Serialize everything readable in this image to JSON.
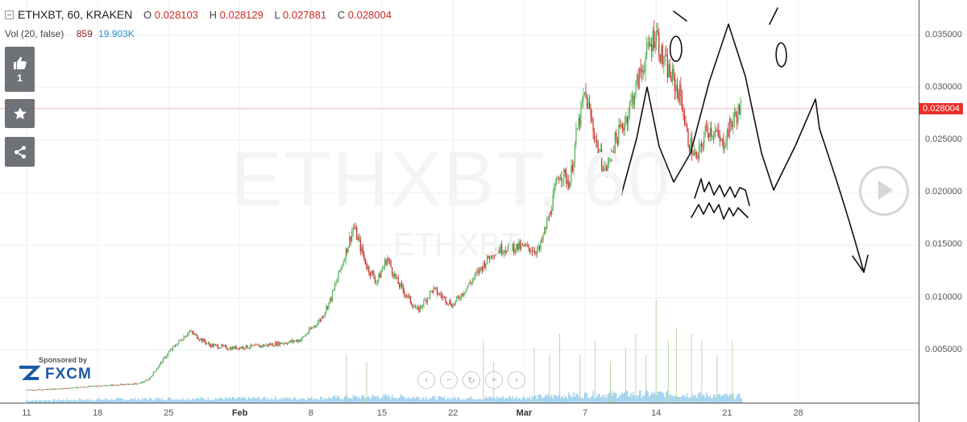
{
  "header": {
    "symbol": "ETHXBT, 60, KRAKEN",
    "open_label": "O",
    "open": "0.028103",
    "high_label": "H",
    "high": "0.028129",
    "low_label": "L",
    "low": "0.027881",
    "close_label": "C",
    "close": "0.028004"
  },
  "volume": {
    "label": "Vol (20, false)",
    "value1": "859",
    "value2": "19.903K"
  },
  "sidebar": {
    "like_count": "1"
  },
  "watermark": {
    "main": "ETHXBT, 60",
    "sub": "ETHXBT"
  },
  "sponsor": {
    "by": "Sponsored by",
    "logo": "FXCM"
  },
  "colors": {
    "up": "#4caf50",
    "down": "#c62828",
    "price_line": "#e8302a",
    "volume": "#7fc3ea",
    "accent_text": "#cc2b22"
  },
  "chart_data": {
    "type": "candlestick",
    "symbol": "ETHXBT",
    "interval": "60",
    "exchange": "KRAKEN",
    "last_price": 0.028004,
    "last_price_label": "0.028004",
    "ylim": [
      0.0,
      0.0385
    ],
    "y_ticks": [
      {
        "value": 0.005,
        "label": "0.005000"
      },
      {
        "value": 0.01,
        "label": "0.010000"
      },
      {
        "value": 0.015,
        "label": "0.015000"
      },
      {
        "value": 0.02,
        "label": "0.020000"
      },
      {
        "value": 0.025,
        "label": "0.025000"
      },
      {
        "value": 0.03,
        "label": "0.030000"
      },
      {
        "value": 0.035,
        "label": "0.035000"
      }
    ],
    "x_ticks": [
      {
        "label": "11",
        "bold": false,
        "day": 0
      },
      {
        "label": "18",
        "bold": false,
        "day": 7
      },
      {
        "label": "25",
        "bold": false,
        "day": 14
      },
      {
        "label": "Feb",
        "bold": true,
        "day": 21
      },
      {
        "label": "8",
        "bold": false,
        "day": 28
      },
      {
        "label": "15",
        "bold": false,
        "day": 35
      },
      {
        "label": "22",
        "bold": false,
        "day": 42
      },
      {
        "label": "Mar",
        "bold": true,
        "day": 49
      },
      {
        "label": "7",
        "bold": false,
        "day": 55
      },
      {
        "label": "14",
        "bold": false,
        "day": 62
      },
      {
        "label": "21",
        "bold": false,
        "day": 69
      },
      {
        "label": "28",
        "bold": false,
        "day": 76
      }
    ],
    "price_path": [
      [
        0,
        0.0012
      ],
      [
        3,
        0.0013
      ],
      [
        7,
        0.0016
      ],
      [
        9,
        0.0017
      ],
      [
        11,
        0.0018
      ],
      [
        12,
        0.0022
      ],
      [
        14,
        0.0048
      ],
      [
        16,
        0.0068
      ],
      [
        18,
        0.0055
      ],
      [
        20,
        0.0052
      ],
      [
        23,
        0.0054
      ],
      [
        26,
        0.0058
      ],
      [
        27,
        0.006
      ],
      [
        29,
        0.008
      ],
      [
        30,
        0.01
      ],
      [
        31,
        0.013
      ],
      [
        32.2,
        0.0168
      ],
      [
        33.5,
        0.013
      ],
      [
        34.5,
        0.0115
      ],
      [
        35.5,
        0.0138
      ],
      [
        36.5,
        0.0115
      ],
      [
        38.5,
        0.0087
      ],
      [
        40,
        0.0108
      ],
      [
        42,
        0.0093
      ],
      [
        44,
        0.0118
      ],
      [
        46,
        0.0145
      ],
      [
        47.5,
        0.0148
      ],
      [
        49,
        0.0148
      ],
      [
        50.5,
        0.0145
      ],
      [
        51.5,
        0.018
      ],
      [
        52.5,
        0.022
      ],
      [
        53.5,
        0.021
      ],
      [
        54.2,
        0.0258
      ],
      [
        55,
        0.0295
      ],
      [
        56.3,
        0.024
      ],
      [
        57,
        0.022
      ],
      [
        58,
        0.025
      ],
      [
        59,
        0.027
      ],
      [
        60,
        0.03
      ],
      [
        61,
        0.033
      ],
      [
        62,
        0.0355
      ],
      [
        62.5,
        0.033
      ],
      [
        63.5,
        0.031
      ],
      [
        64.5,
        0.029
      ],
      [
        65,
        0.0255
      ],
      [
        66,
        0.023
      ],
      [
        67,
        0.0262
      ],
      [
        67.8,
        0.0258
      ],
      [
        68.5,
        0.0245
      ],
      [
        69.5,
        0.0268
      ],
      [
        70.3,
        0.028
      ],
      [
        70.5,
        0.028
      ]
    ],
    "volume_profile": [
      [
        0,
        0.25
      ],
      [
        14,
        0.45
      ],
      [
        28,
        0.5
      ],
      [
        35,
        0.7
      ],
      [
        42,
        0.5
      ],
      [
        49,
        0.6
      ],
      [
        55,
        0.9
      ],
      [
        62,
        1.0
      ],
      [
        70.5,
        0.7
      ]
    ],
    "volume_spikes": [
      [
        31.5,
        0.35
      ],
      [
        33.5,
        0.3
      ],
      [
        45,
        0.45
      ],
      [
        46,
        0.3
      ],
      [
        50,
        0.4
      ],
      [
        51.5,
        0.35
      ],
      [
        52.5,
        0.5
      ],
      [
        54.5,
        0.35
      ],
      [
        56,
        0.45
      ],
      [
        57.5,
        0.3
      ],
      [
        59,
        0.4
      ],
      [
        60,
        0.5
      ],
      [
        61,
        0.35
      ],
      [
        62,
        0.75
      ],
      [
        63.2,
        0.45
      ],
      [
        64,
        0.55
      ],
      [
        65.5,
        0.5
      ],
      [
        66.5,
        0.45
      ],
      [
        68,
        0.35
      ],
      [
        69.5,
        0.45
      ]
    ]
  }
}
